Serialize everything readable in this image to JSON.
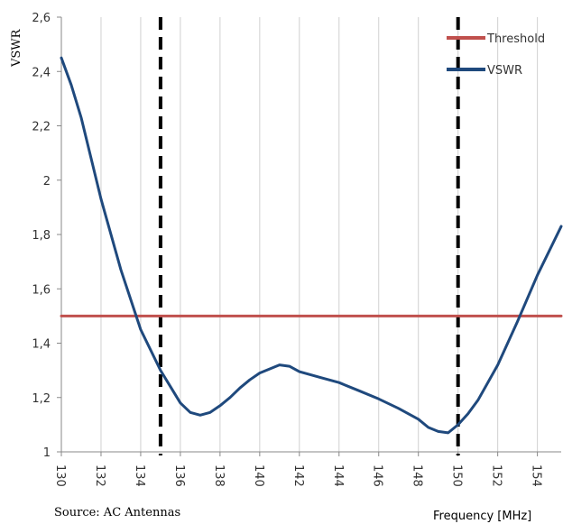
{
  "chart_data": {
    "type": "line",
    "xlabel": "Frequency [MHz]",
    "ylabel": "VSWR",
    "xlim": [
      130,
      155.2
    ],
    "ylim": [
      1,
      2.6
    ],
    "x_ticks": [
      "130",
      "132",
      "134",
      "136",
      "138",
      "140",
      "142",
      "144",
      "146",
      "148",
      "150",
      "152",
      "154"
    ],
    "y_ticks": [
      "1",
      "1,2",
      "1,4",
      "1,6",
      "1,8",
      "2",
      "2,2",
      "2,4",
      "2,6"
    ],
    "grid": "vertical",
    "legend_position": "top-right",
    "markers_x": [
      135,
      150
    ],
    "series": [
      {
        "name": "Threshold",
        "color": "#C0504D",
        "x": [
          130,
          155.2
        ],
        "y": [
          1.5,
          1.5
        ]
      },
      {
        "name": "VSWR",
        "color": "#1F497D",
        "x": [
          130,
          130.5,
          131,
          132,
          133,
          134,
          135,
          135.5,
          136,
          136.5,
          137,
          137.5,
          138,
          138.5,
          139,
          139.5,
          140,
          140.5,
          141,
          141.5,
          142,
          143,
          144,
          145,
          146,
          147,
          148,
          148.5,
          149,
          149.5,
          150,
          150.5,
          151,
          152,
          153,
          154,
          155.2
        ],
        "y": [
          2.45,
          2.35,
          2.23,
          1.93,
          1.67,
          1.45,
          1.3,
          1.24,
          1.18,
          1.145,
          1.135,
          1.145,
          1.17,
          1.2,
          1.235,
          1.265,
          1.29,
          1.305,
          1.32,
          1.315,
          1.295,
          1.275,
          1.255,
          1.225,
          1.195,
          1.16,
          1.12,
          1.09,
          1.075,
          1.07,
          1.1,
          1.14,
          1.19,
          1.32,
          1.48,
          1.65,
          1.83
        ]
      }
    ]
  },
  "source_label": "Source: AC Antennas"
}
